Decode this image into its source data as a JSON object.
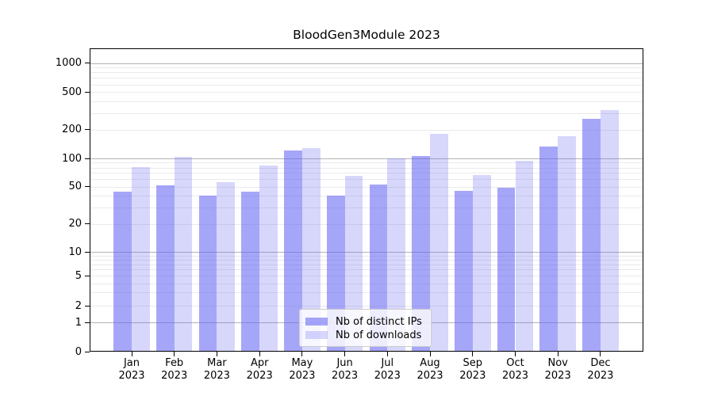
{
  "title": "BloodGen3Module 2023",
  "legend": {
    "items": [
      {
        "label": "Nb of distinct IPs",
        "series_key": "ips"
      },
      {
        "label": "Nb of downloads",
        "series_key": "downloads"
      }
    ]
  },
  "axes": {
    "y_tick_values": [
      0,
      1,
      2,
      5,
      10,
      20,
      50,
      100,
      200,
      500,
      1000
    ],
    "x_tick_months": [
      "Jan",
      "Feb",
      "Mar",
      "Apr",
      "May",
      "Jun",
      "Jul",
      "Aug",
      "Sep",
      "Oct",
      "Nov",
      "Dec"
    ],
    "x_tick_year": "2023"
  },
  "colors": {
    "ips_bar": "rgba(102,102,245,0.58)",
    "downloads_bar": "rgba(102,102,245,0.26)",
    "major_grid": "#b3b3b3",
    "minor_grid": "#eaeaea",
    "spine": "#000000",
    "legend_border": "#cccccc"
  },
  "chart_data": {
    "type": "bar",
    "title": "BloodGen3Module 2023",
    "categories": [
      "Jan 2023",
      "Feb 2023",
      "Mar 2023",
      "Apr 2023",
      "May 2023",
      "Jun 2023",
      "Jul 2023",
      "Aug 2023",
      "Sep 2023",
      "Oct 2023",
      "Nov 2023",
      "Dec 2023"
    ],
    "series": [
      {
        "name": "Nb of distinct IPs",
        "values": [
          44,
          52,
          40,
          44,
          121,
          40,
          53,
          106,
          45,
          49,
          133,
          262
        ]
      },
      {
        "name": "Nb of downloads",
        "values": [
          81,
          104,
          56,
          84,
          128,
          65,
          101,
          183,
          67,
          95,
          172,
          325
        ]
      }
    ],
    "xlabel": "",
    "ylabel": "",
    "yscale": "symlog",
    "yticks": [
      0,
      1,
      2,
      5,
      10,
      20,
      50,
      100,
      200,
      500,
      1000
    ],
    "ylim": [
      0,
      1400
    ],
    "grid": "horizontal major and minor gridlines",
    "legend_position": "inside lower-center"
  }
}
